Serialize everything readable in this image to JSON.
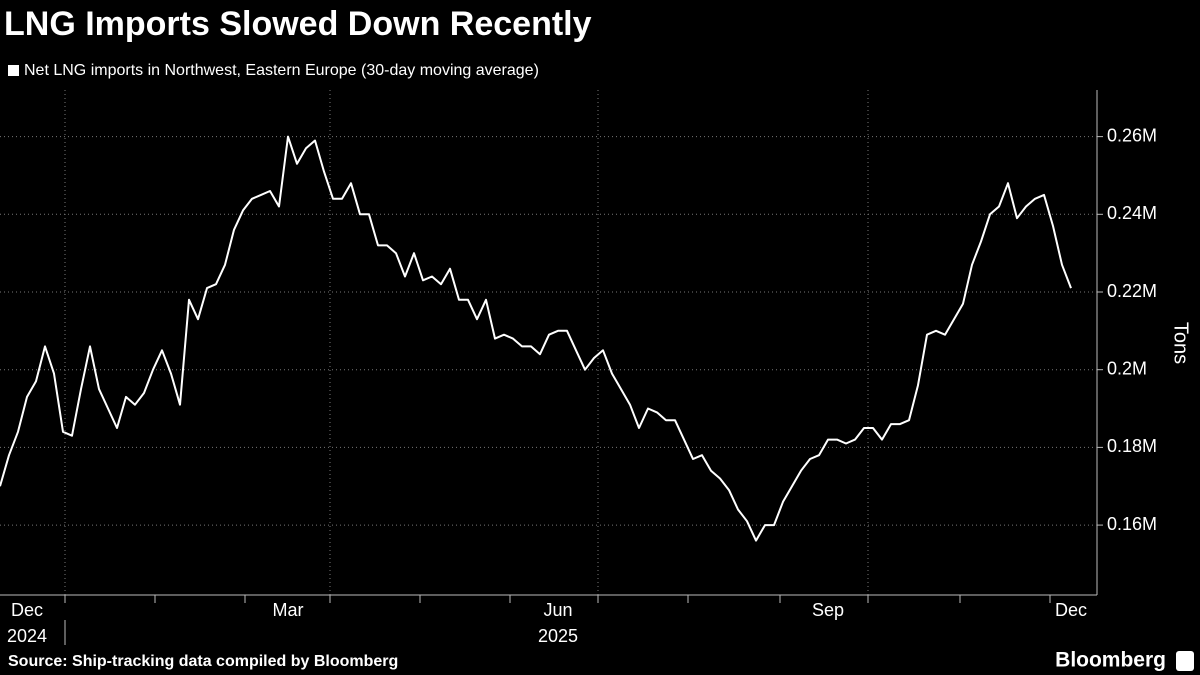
{
  "chart_data": {
    "type": "line",
    "title": "LNG Imports Slowed Down Recently",
    "y_axis_label": "Tons",
    "source": "Source: Ship-tracking data compiled by Bloomberg",
    "brand": "Bloomberg",
    "categories": [
      null,
      null,
      null,
      "Dec 2024",
      null,
      null,
      null,
      null,
      null,
      null,
      null,
      null,
      null,
      null,
      null,
      null,
      null,
      null,
      null,
      null,
      null,
      null,
      null,
      null,
      null,
      null,
      null,
      null,
      null,
      null,
      null,
      null,
      "Mar",
      null,
      null,
      null,
      null,
      null,
      null,
      null,
      null,
      null,
      null,
      null,
      null,
      null,
      null,
      null,
      null,
      null,
      null,
      null,
      null,
      null,
      null,
      null,
      null,
      null,
      null,
      null,
      null,
      null,
      "Jun 2025",
      null,
      null,
      null,
      null,
      null,
      null,
      null,
      null,
      null,
      null,
      null,
      null,
      null,
      null,
      null,
      null,
      null,
      null,
      null,
      null,
      null,
      null,
      null,
      null,
      null,
      null,
      null,
      null,
      null,
      "Sep",
      null,
      null,
      null,
      null,
      null,
      null,
      null,
      null,
      null,
      null,
      null,
      null,
      null,
      null,
      null,
      null,
      null,
      null,
      null,
      null,
      null,
      null,
      null,
      null,
      null,
      null,
      "Dec"
    ],
    "series": [
      {
        "name": "Net LNG imports in Northwest, Eastern Europe (30-day moving average)",
        "color": "#ffffff",
        "values": [
          170000,
          178000,
          184000,
          193000,
          197000,
          206000,
          199000,
          184000,
          183000,
          195000,
          206000,
          195000,
          190000,
          185000,
          193000,
          191000,
          194000,
          200000,
          205000,
          199000,
          191000,
          218000,
          213000,
          221000,
          222000,
          227000,
          236000,
          241000,
          244000,
          245000,
          246000,
          242000,
          260000,
          253000,
          257000,
          259000,
          251000,
          244000,
          244000,
          248000,
          240000,
          240000,
          232000,
          232000,
          230000,
          224000,
          230000,
          223000,
          224000,
          222000,
          226000,
          218000,
          218000,
          213000,
          218000,
          208000,
          209000,
          208000,
          206000,
          206000,
          204000,
          209000,
          210000,
          210000,
          205000,
          200000,
          203000,
          205000,
          199000,
          195000,
          191000,
          185000,
          190000,
          189000,
          187000,
          187000,
          182000,
          177000,
          178000,
          174000,
          172000,
          169000,
          164000,
          161000,
          156000,
          160000,
          160000,
          166000,
          170000,
          174000,
          177000,
          178000,
          182000,
          182000,
          181000,
          182000,
          185000,
          185000,
          182000,
          186000,
          186000,
          187000,
          196000,
          209000,
          210000,
          209000,
          213000,
          217000,
          227000,
          233000,
          240000,
          242000,
          248000,
          239000,
          242000,
          244000,
          245000,
          237000,
          227000,
          221000
        ]
      }
    ],
    "ylim": [
      142000,
      272000
    ],
    "yticks": [
      {
        "value": 160000,
        "label": "0.16M"
      },
      {
        "value": 180000,
        "label": "0.18M"
      },
      {
        "value": 200000,
        "label": "0.2M"
      },
      {
        "value": 220000,
        "label": "0.22M"
      },
      {
        "value": 240000,
        "label": "0.24M"
      },
      {
        "value": 260000,
        "label": "0.26M"
      }
    ],
    "grid": true,
    "yaxis_side": "right"
  }
}
